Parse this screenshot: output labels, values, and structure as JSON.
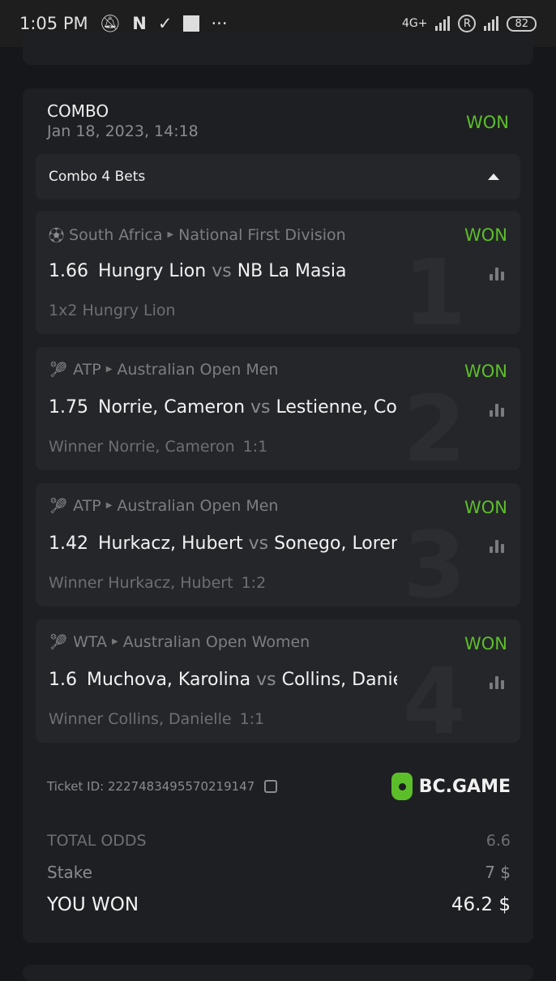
{
  "status_bar": {
    "time": "1:05 PM",
    "network": "4G+",
    "roaming": "R",
    "battery": "82",
    "overflow": "···"
  },
  "ticket": {
    "type": "COMBO",
    "date": "Jan 18, 2023, 14:18",
    "status": "WON",
    "status_color": "#5cbf2a",
    "combo_label": "Combo 4 Bets",
    "bets": [
      {
        "num": "1",
        "sport_icon": "soccer-ball",
        "country": "South Africa",
        "league": "National First Division",
        "status": "WON",
        "odds": "1.66",
        "home": "Hungry Lion",
        "vs": "vs",
        "away": "NB La Masia",
        "market": "1x2 Hungry Lion",
        "ratio": ""
      },
      {
        "num": "2",
        "sport_icon": "tennis-racket",
        "country": "ATP",
        "league": "Australian Open Men",
        "status": "WON",
        "odds": "1.75",
        "home": "Norrie, Cameron",
        "vs": "vs",
        "away": "Lestienne, Constant",
        "market": "Winner Norrie, Cameron",
        "ratio": "1:1"
      },
      {
        "num": "3",
        "sport_icon": "tennis-racket",
        "country": "ATP",
        "league": "Australian Open Men",
        "status": "WON",
        "odds": "1.42",
        "home": "Hurkacz, Hubert",
        "vs": "vs",
        "away": "Sonego, Lorenzo",
        "market": "Winner Hurkacz, Hubert",
        "ratio": "1:2"
      },
      {
        "num": "4",
        "sport_icon": "tennis-racket",
        "country": "WTA",
        "league": "Australian Open Women",
        "status": "WON",
        "odds": "1.6",
        "home": "Muchova, Karolina",
        "vs": "vs",
        "away": "Collins, Danielle",
        "market": "Winner Collins, Danielle",
        "ratio": "1:1"
      }
    ],
    "ticket_id": "Ticket ID: 2227483495570219147",
    "brand": "BC.GAME",
    "total_odds_label": "TOTAL ODDS",
    "total_odds": "6.6",
    "stake_label": "Stake",
    "stake": "7 $",
    "won_label": "YOU WON",
    "won_amount": "46.2 $"
  }
}
